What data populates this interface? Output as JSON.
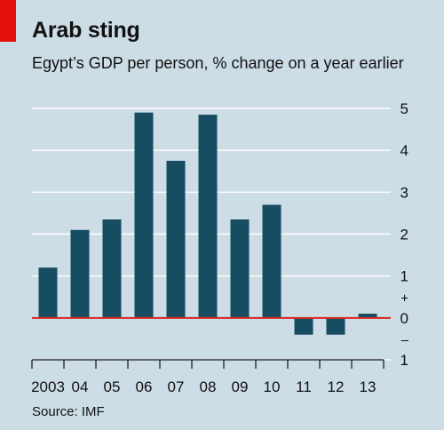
{
  "header": {
    "title": "Arab sting",
    "subtitle": "Egypt’s GDP per person, % change on a year earlier"
  },
  "footer": {
    "source": "Source: IMF"
  },
  "colors": {
    "background": "#ccdde6",
    "bar": "#174d63",
    "zero_line": "#d9261c",
    "grid": "#ffffff",
    "accent": "#e3120b"
  },
  "chart_data": {
    "type": "bar",
    "title": "Arab sting",
    "subtitle": "Egypt’s GDP per person, % change on a year earlier",
    "categories": [
      "2003",
      "04",
      "05",
      "06",
      "07",
      "08",
      "09",
      "10",
      "11",
      "12",
      "13"
    ],
    "values": [
      1.2,
      2.1,
      2.35,
      4.9,
      3.75,
      4.85,
      2.35,
      2.7,
      -0.4,
      -0.4,
      0.1
    ],
    "ylim": [
      -1,
      5
    ],
    "yticks": [
      {
        "value": 5,
        "label": "5"
      },
      {
        "value": 4,
        "label": "4"
      },
      {
        "value": 3,
        "label": "3"
      },
      {
        "value": 2,
        "label": "2"
      },
      {
        "value": 1,
        "label": "1"
      },
      {
        "value": 0,
        "label": "0"
      },
      {
        "value": -1,
        "label": "1"
      }
    ],
    "sign_markers": {
      "plus": "+",
      "minus": "–"
    },
    "y_axis_position": "right",
    "grid": true,
    "source": "Source: IMF"
  }
}
